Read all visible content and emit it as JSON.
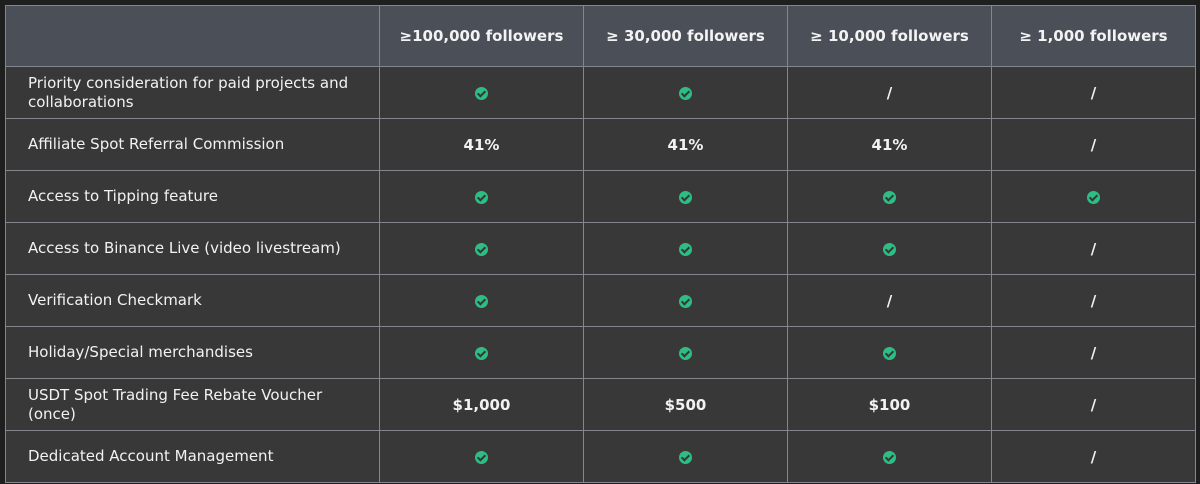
{
  "table": {
    "headers": [
      "",
      "≥100,000 followers",
      "≥ 30,000 followers",
      "≥ 10,000 followers",
      "≥ 1,000 followers"
    ],
    "accent_color": "#2ebd85",
    "rows": [
      {
        "feature": "Priority consideration for paid projects and collaborations",
        "cells": [
          "check",
          "check",
          "/",
          "/"
        ]
      },
      {
        "feature": "Affiliate Spot Referral Commission",
        "cells": [
          "41%",
          "41%",
          "41%",
          "/"
        ]
      },
      {
        "feature": "Access to Tipping feature",
        "cells": [
          "check",
          "check",
          "check",
          "check"
        ]
      },
      {
        "feature": "Access to Binance Live (video livestream)",
        "cells": [
          "check",
          "check",
          "check",
          "/"
        ]
      },
      {
        "feature": "Verification Checkmark",
        "cells": [
          "check",
          "check",
          "/",
          "/"
        ]
      },
      {
        "feature": "Holiday/Special merchandises",
        "cells": [
          "check",
          "check",
          "check",
          "/"
        ]
      },
      {
        "feature": "USDT Spot Trading Fee Rebate Voucher (once)",
        "cells": [
          "$1,000",
          "$500",
          "$100",
          "/"
        ]
      },
      {
        "feature": "Dedicated Account Management",
        "cells": [
          "check",
          "check",
          "check",
          "/"
        ]
      }
    ]
  }
}
